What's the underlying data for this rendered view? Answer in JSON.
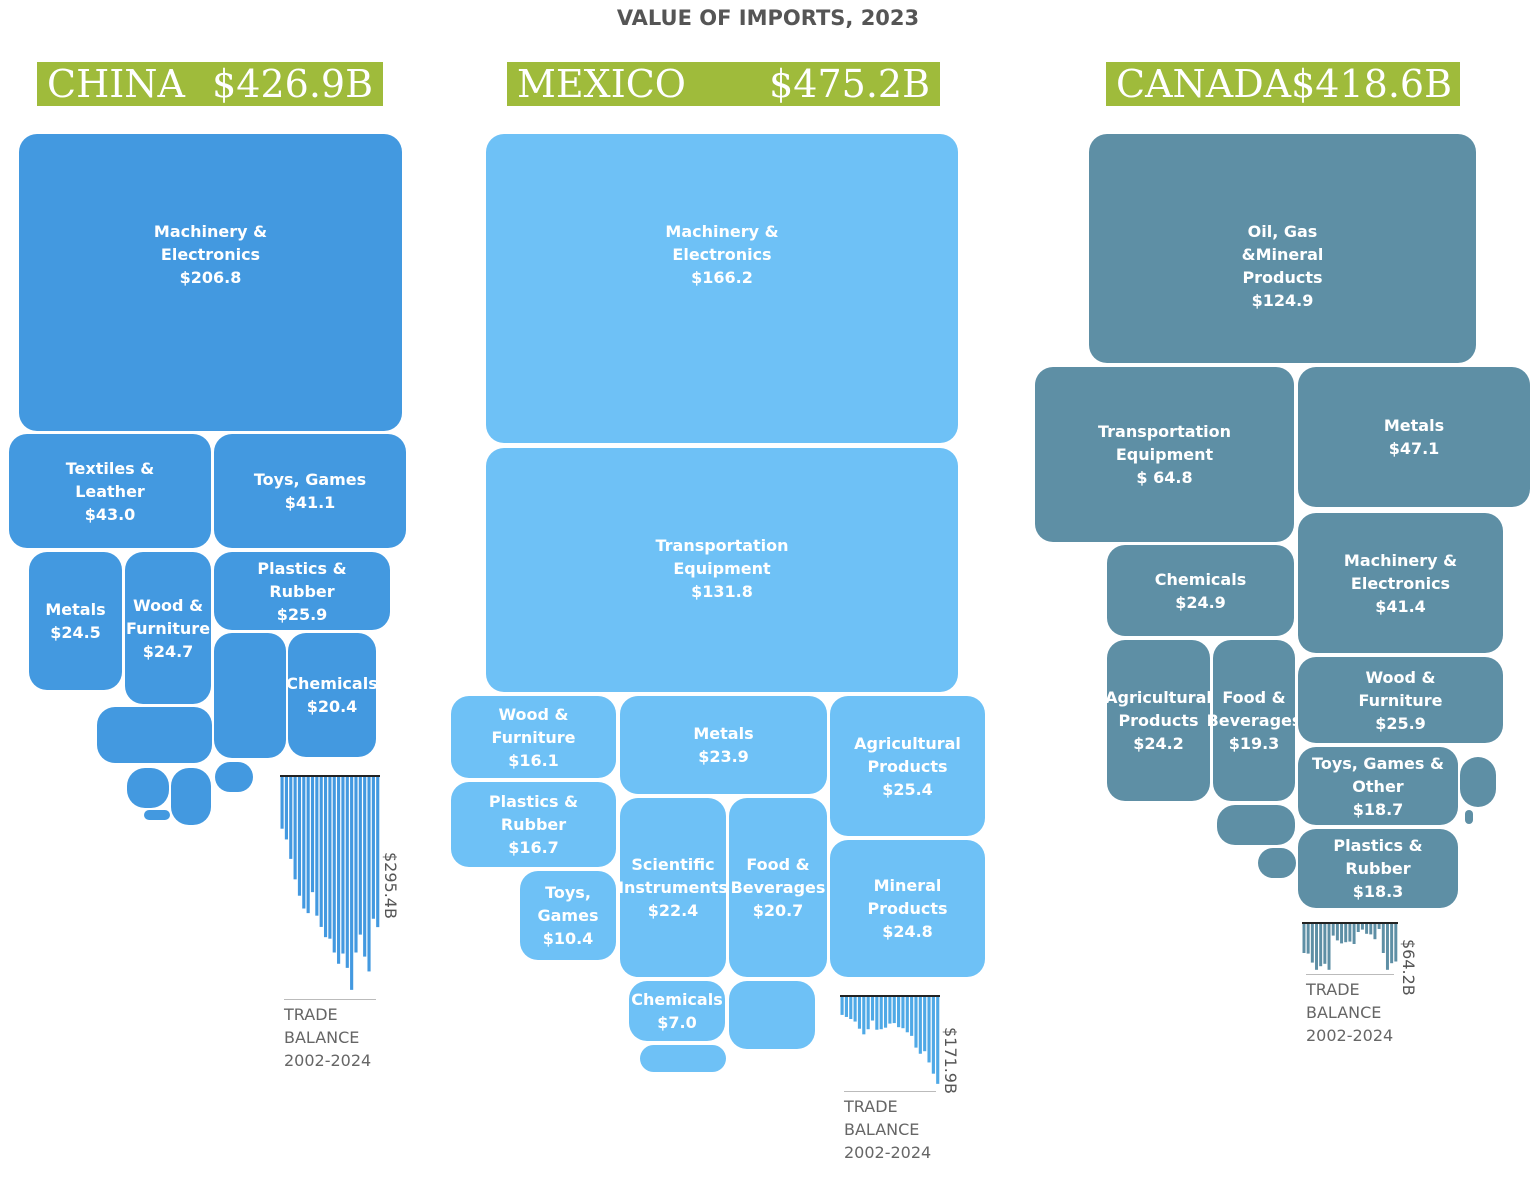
{
  "title": "VALUE OF IMPORTS, 2023",
  "chart_data": [
    {
      "type": "treemap",
      "title": "CHINA",
      "subtitle": "$426.9B",
      "color": "#4399e0",
      "categories": [
        "Machinery & Electronics",
        "Textiles & Leather",
        "Toys, Games",
        "Plastics & Rubber",
        "Metals",
        "Wood & Furniture",
        "Chemicals",
        null,
        null,
        null,
        null,
        null,
        null
      ],
      "values": [
        206.8,
        43.0,
        41.1,
        25.9,
        24.5,
        24.7,
        20.4,
        16,
        12,
        4,
        5,
        3,
        0.5
      ],
      "value_labels": [
        "$206.8",
        "$43.0",
        "$41.1",
        "$25.9",
        "$24.5",
        "$24.7",
        "$20.4",
        null,
        null,
        null,
        null,
        null,
        null
      ]
    },
    {
      "type": "treemap",
      "title": "MEXICO",
      "subtitle": "$475.2B",
      "color": "#6ec1f6",
      "categories": [
        "Machinery & Electronics",
        "Transportation Equipment",
        "Wood & Furniture",
        "Metals",
        "Agricultural Products",
        "Plastics & Rubber",
        "Scientific Instruments",
        "Food & Beverages",
        "Mineral Products",
        "Toys, Games",
        "Chemicals",
        null,
        null
      ],
      "values": [
        166.2,
        131.8,
        16.1,
        23.9,
        25.4,
        16.7,
        22.4,
        20.7,
        24.8,
        10.4,
        7.0,
        6,
        3.8
      ],
      "value_labels": [
        "$166.2",
        "$131.8",
        "$16.1",
        "$23.9",
        "$25.4",
        "$16.7",
        "$22.4",
        "$20.7",
        "$24.8",
        "$10.4",
        "$7.0",
        null,
        null
      ]
    },
    {
      "type": "treemap",
      "title": "CANADA",
      "subtitle": "$418.6B",
      "color": "#5e8fa5",
      "categories": [
        "Oil, Gas &Mineral Products",
        "Transportation Equipment",
        "Metals",
        "Chemicals",
        "Machinery & Electronics",
        "Agricultural Products",
        "Food & Beverages",
        "Wood & Furniture",
        "Toys, Games & Other",
        "Plastics & Rubber",
        null,
        null,
        null,
        null
      ],
      "values": [
        124.9,
        64.8,
        47.1,
        24.9,
        41.4,
        24.2,
        19.3,
        25.9,
        18.7,
        18.3,
        4,
        3,
        1.6,
        0.5
      ],
      "value_labels": [
        "$124.9",
        "$ 64.8",
        "$47.1",
        "$24.9",
        "$41.4",
        "$24.2",
        "$19.3",
        "$25.9",
        "$18.7",
        "$18.3",
        null,
        null,
        null,
        null
      ]
    },
    {
      "type": "bar",
      "x_label": "TRADE BALANCE 2002-2024",
      "annotation": "$295.4B",
      "color": "#4399e0",
      "ylim": [
        -430,
        0
      ],
      "values": [
        -103,
        -124,
        -162,
        -202,
        -234,
        -259,
        -268,
        -227,
        -273,
        -295,
        -315,
        -318,
        -345,
        -367,
        -347,
        -375,
        -418,
        -345,
        -310,
        -353,
        -382,
        -279,
        -295.4
      ]
    },
    {
      "type": "bar",
      "x_label": "TRADE BALANCE 2002-2024",
      "annotation": "$171.9B",
      "color": "#4fa9e6",
      "ylim": [
        -180,
        0
      ],
      "values": [
        -37,
        -41,
        -45,
        -50,
        -64,
        -75,
        -65,
        -48,
        -66,
        -65,
        -62,
        -54,
        -53,
        -61,
        -63,
        -71,
        -78,
        -101,
        -113,
        -108,
        -130,
        -152,
        -171.9
      ]
    },
    {
      "type": "bar",
      "x_label": "TRADE BALANCE 2002-2024",
      "annotation": "$64.2B",
      "color": "#5e8fa5",
      "ylim": [
        -80,
        0
      ],
      "values": [
        -50,
        -51,
        -66,
        -78,
        -72,
        -68,
        -78,
        -21,
        -29,
        -34,
        -32,
        -31,
        -35,
        -15,
        -11,
        -18,
        -19,
        -27,
        -10,
        -50,
        -78,
        -67,
        -64.2
      ]
    }
  ]
}
